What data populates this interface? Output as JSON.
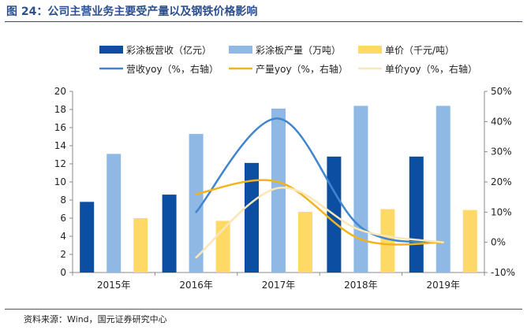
{
  "figure": {
    "title": "图 24：公司主营业务主要受产量以及钢铁价格影响",
    "source": "资料来源：Wind，国元证券研究中心"
  },
  "chart_data": {
    "type": "bar",
    "categories": [
      "2015年",
      "2016年",
      "2017年",
      "2018年",
      "2019年"
    ],
    "ylim": [
      0,
      20
    ],
    "yticks": [
      "0",
      "2",
      "4",
      "6",
      "8",
      "10",
      "12",
      "14",
      "16",
      "18",
      "20"
    ],
    "y2lim": [
      -10,
      50
    ],
    "y2ticks": [
      "-10%",
      "0%",
      "10%",
      "20%",
      "30%",
      "40%",
      "50%"
    ],
    "legend_position": "top",
    "grid": false,
    "series": [
      {
        "name": "彩涂板营收（亿元）",
        "kind": "bar",
        "axis": "left",
        "color": "#0b4ea2",
        "values": [
          7.8,
          8.6,
          12.1,
          12.8,
          12.8
        ]
      },
      {
        "name": "彩涂板产量（万吨）",
        "kind": "bar",
        "axis": "left",
        "color": "#8fb9e4",
        "values": [
          13.1,
          15.3,
          18.1,
          18.4,
          18.4
        ]
      },
      {
        "name": "单价（千元/吨）",
        "kind": "bar",
        "axis": "left",
        "color": "#ffd966",
        "values": [
          6.0,
          5.7,
          6.7,
          7.0,
          6.9
        ]
      },
      {
        "name": "营收yoy（%，右轴）",
        "kind": "line",
        "axis": "right",
        "color": "#3f86cf",
        "x": [
          "2016年",
          "2017年",
          "2018年",
          "2019年"
        ],
        "values": [
          10.0,
          41.0,
          5.0,
          0.0
        ]
      },
      {
        "name": "产量yoy（%，右轴）",
        "kind": "line",
        "axis": "right",
        "color": "#f2b31b",
        "x": [
          "2016年",
          "2017年",
          "2018年",
          "2019年"
        ],
        "values": [
          16.0,
          20.0,
          1.0,
          0.0
        ]
      },
      {
        "name": "单价yoy（%，右轴）",
        "kind": "line",
        "axis": "right",
        "color": "#fbe6b8",
        "x": [
          "2016年",
          "2017年",
          "2018年",
          "2019年"
        ],
        "values": [
          -5.0,
          18.0,
          4.0,
          0.0
        ]
      }
    ]
  }
}
